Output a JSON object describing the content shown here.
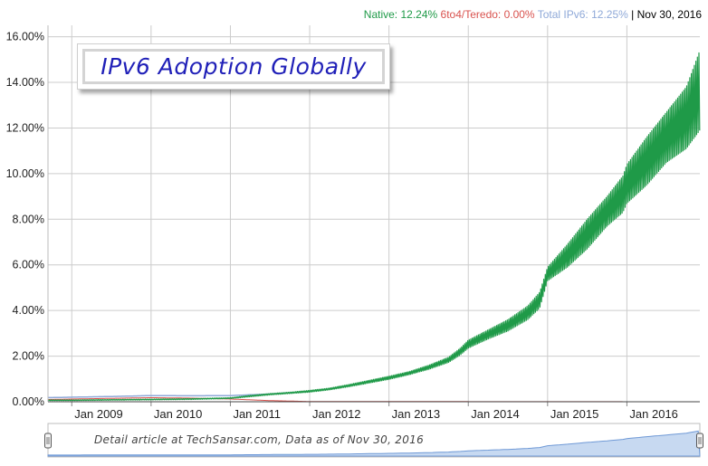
{
  "legend": {
    "native_label": "Native: 12.24%",
    "teredo_label": "6to4/Teredo: 0.00%",
    "total_label": "Total IPv6: 12.25%",
    "separator": "|",
    "date": "Nov 30, 2016"
  },
  "title": "IPv6 Adoption Globally",
  "footnote": "Detail article at TechSansar.com, Data as of Nov 30, 2016",
  "colors": {
    "native": "#1f9a48",
    "teredo": "#d9534f",
    "total": "#8fa9d8",
    "date": "#000000",
    "grid": "#cccccc",
    "navigator_fill": "#c7d9f1",
    "navigator_line": "#6f99d6"
  },
  "chart_data": {
    "type": "line",
    "title": "IPv6 Adoption Globally",
    "xlabel": "",
    "ylabel": "",
    "x_ticks": [
      "Jan 2009",
      "Jan 2010",
      "Jan 2011",
      "Jan 2012",
      "Jan 2013",
      "Jan 2014",
      "Jan 2015",
      "Jan 2016"
    ],
    "y_ticks": [
      "0.00%",
      "2.00%",
      "4.00%",
      "6.00%",
      "8.00%",
      "10.00%",
      "12.00%",
      "14.00%",
      "16.00%"
    ],
    "ylim": [
      0,
      16.5
    ],
    "xlim": [
      2008.7,
      2016.92
    ],
    "series": [
      {
        "name": "Native",
        "x": [
          2008.7,
          2009.0,
          2009.5,
          2010.0,
          2010.5,
          2011.0,
          2011.25,
          2011.5,
          2011.75,
          2012.0,
          2012.25,
          2012.5,
          2012.75,
          2013.0,
          2013.25,
          2013.5,
          2013.75,
          2013.9,
          2014.0,
          2014.25,
          2014.5,
          2014.75,
          2014.9,
          2015.0,
          2015.25,
          2015.5,
          2015.75,
          2015.95,
          2016.0,
          2016.25,
          2016.5,
          2016.75,
          2016.92
        ],
        "low": [
          0.05,
          0.05,
          0.07,
          0.08,
          0.1,
          0.14,
          0.22,
          0.3,
          0.36,
          0.42,
          0.52,
          0.66,
          0.82,
          0.98,
          1.18,
          1.42,
          1.72,
          2.05,
          2.35,
          2.75,
          3.1,
          3.6,
          4.1,
          5.3,
          5.9,
          6.7,
          7.7,
          8.3,
          8.7,
          9.5,
          10.5,
          11.1,
          11.9
        ],
        "high": [
          0.08,
          0.08,
          0.1,
          0.12,
          0.14,
          0.18,
          0.28,
          0.36,
          0.42,
          0.5,
          0.6,
          0.76,
          0.94,
          1.12,
          1.32,
          1.6,
          1.95,
          2.35,
          2.7,
          3.15,
          3.6,
          4.2,
          4.8,
          5.9,
          6.9,
          8.0,
          9.0,
          9.9,
          10.4,
          11.6,
          12.7,
          13.8,
          15.4
        ]
      },
      {
        "name": "6to4/Teredo",
        "x": [
          2008.7,
          2009.0,
          2009.5,
          2010.0,
          2010.5,
          2011.0,
          2011.5,
          2012.0,
          2016.92
        ],
        "values": [
          0.1,
          0.12,
          0.15,
          0.18,
          0.16,
          0.12,
          0.05,
          0.01,
          0.0
        ]
      },
      {
        "name": "Total IPv6",
        "x": [
          2008.7,
          2009.0,
          2009.5,
          2010.0,
          2010.5,
          2011.0,
          2011.5,
          2012.0
        ],
        "values": [
          0.18,
          0.2,
          0.23,
          0.27,
          0.26,
          0.27,
          0.34,
          0.45
        ]
      }
    ],
    "current_values": {
      "native": 12.24,
      "teredo": 0.0,
      "total": 12.25,
      "date": "Nov 30, 2016"
    }
  }
}
